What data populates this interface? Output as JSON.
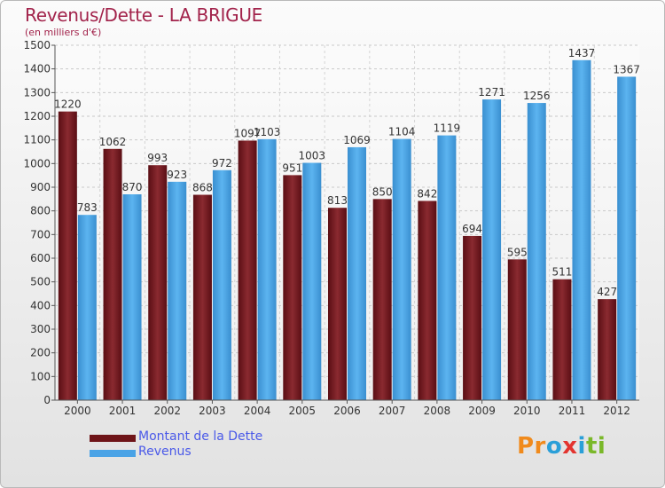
{
  "header": {
    "title": "Revenus/Dette - LA BRIGUE",
    "subtitle": "(en milliers d'€)"
  },
  "chart_data": {
    "type": "bar",
    "categories": [
      "2000",
      "2001",
      "2002",
      "2003",
      "2004",
      "2005",
      "2006",
      "2007",
      "2008",
      "2009",
      "2010",
      "2011",
      "2012"
    ],
    "series": [
      {
        "name": "Montant de la Dette",
        "color": "#7b1f24",
        "values": [
          1220,
          1062,
          993,
          868,
          1097,
          951,
          813,
          850,
          842,
          694,
          595,
          511,
          427
        ]
      },
      {
        "name": "Revenus",
        "color": "#4aa3e6",
        "values": [
          783,
          870,
          923,
          972,
          1103,
          1003,
          1069,
          1104,
          1119,
          1271,
          1256,
          1437,
          1367
        ]
      }
    ],
    "yticks": [
      0,
      100,
      200,
      300,
      400,
      500,
      600,
      700,
      800,
      900,
      1000,
      1100,
      1200,
      1300,
      1400,
      1500
    ],
    "ylim": [
      0,
      1500
    ],
    "grid": true,
    "legend_position": "bottom-left"
  },
  "legend": {
    "items": [
      {
        "label": "Montant de la Dette",
        "color": "#7b1f24"
      },
      {
        "label": "Revenus",
        "color": "#4aa3e6"
      }
    ]
  },
  "logo": {
    "letters": [
      "Pr",
      "o",
      "x",
      "i",
      "ti"
    ]
  }
}
